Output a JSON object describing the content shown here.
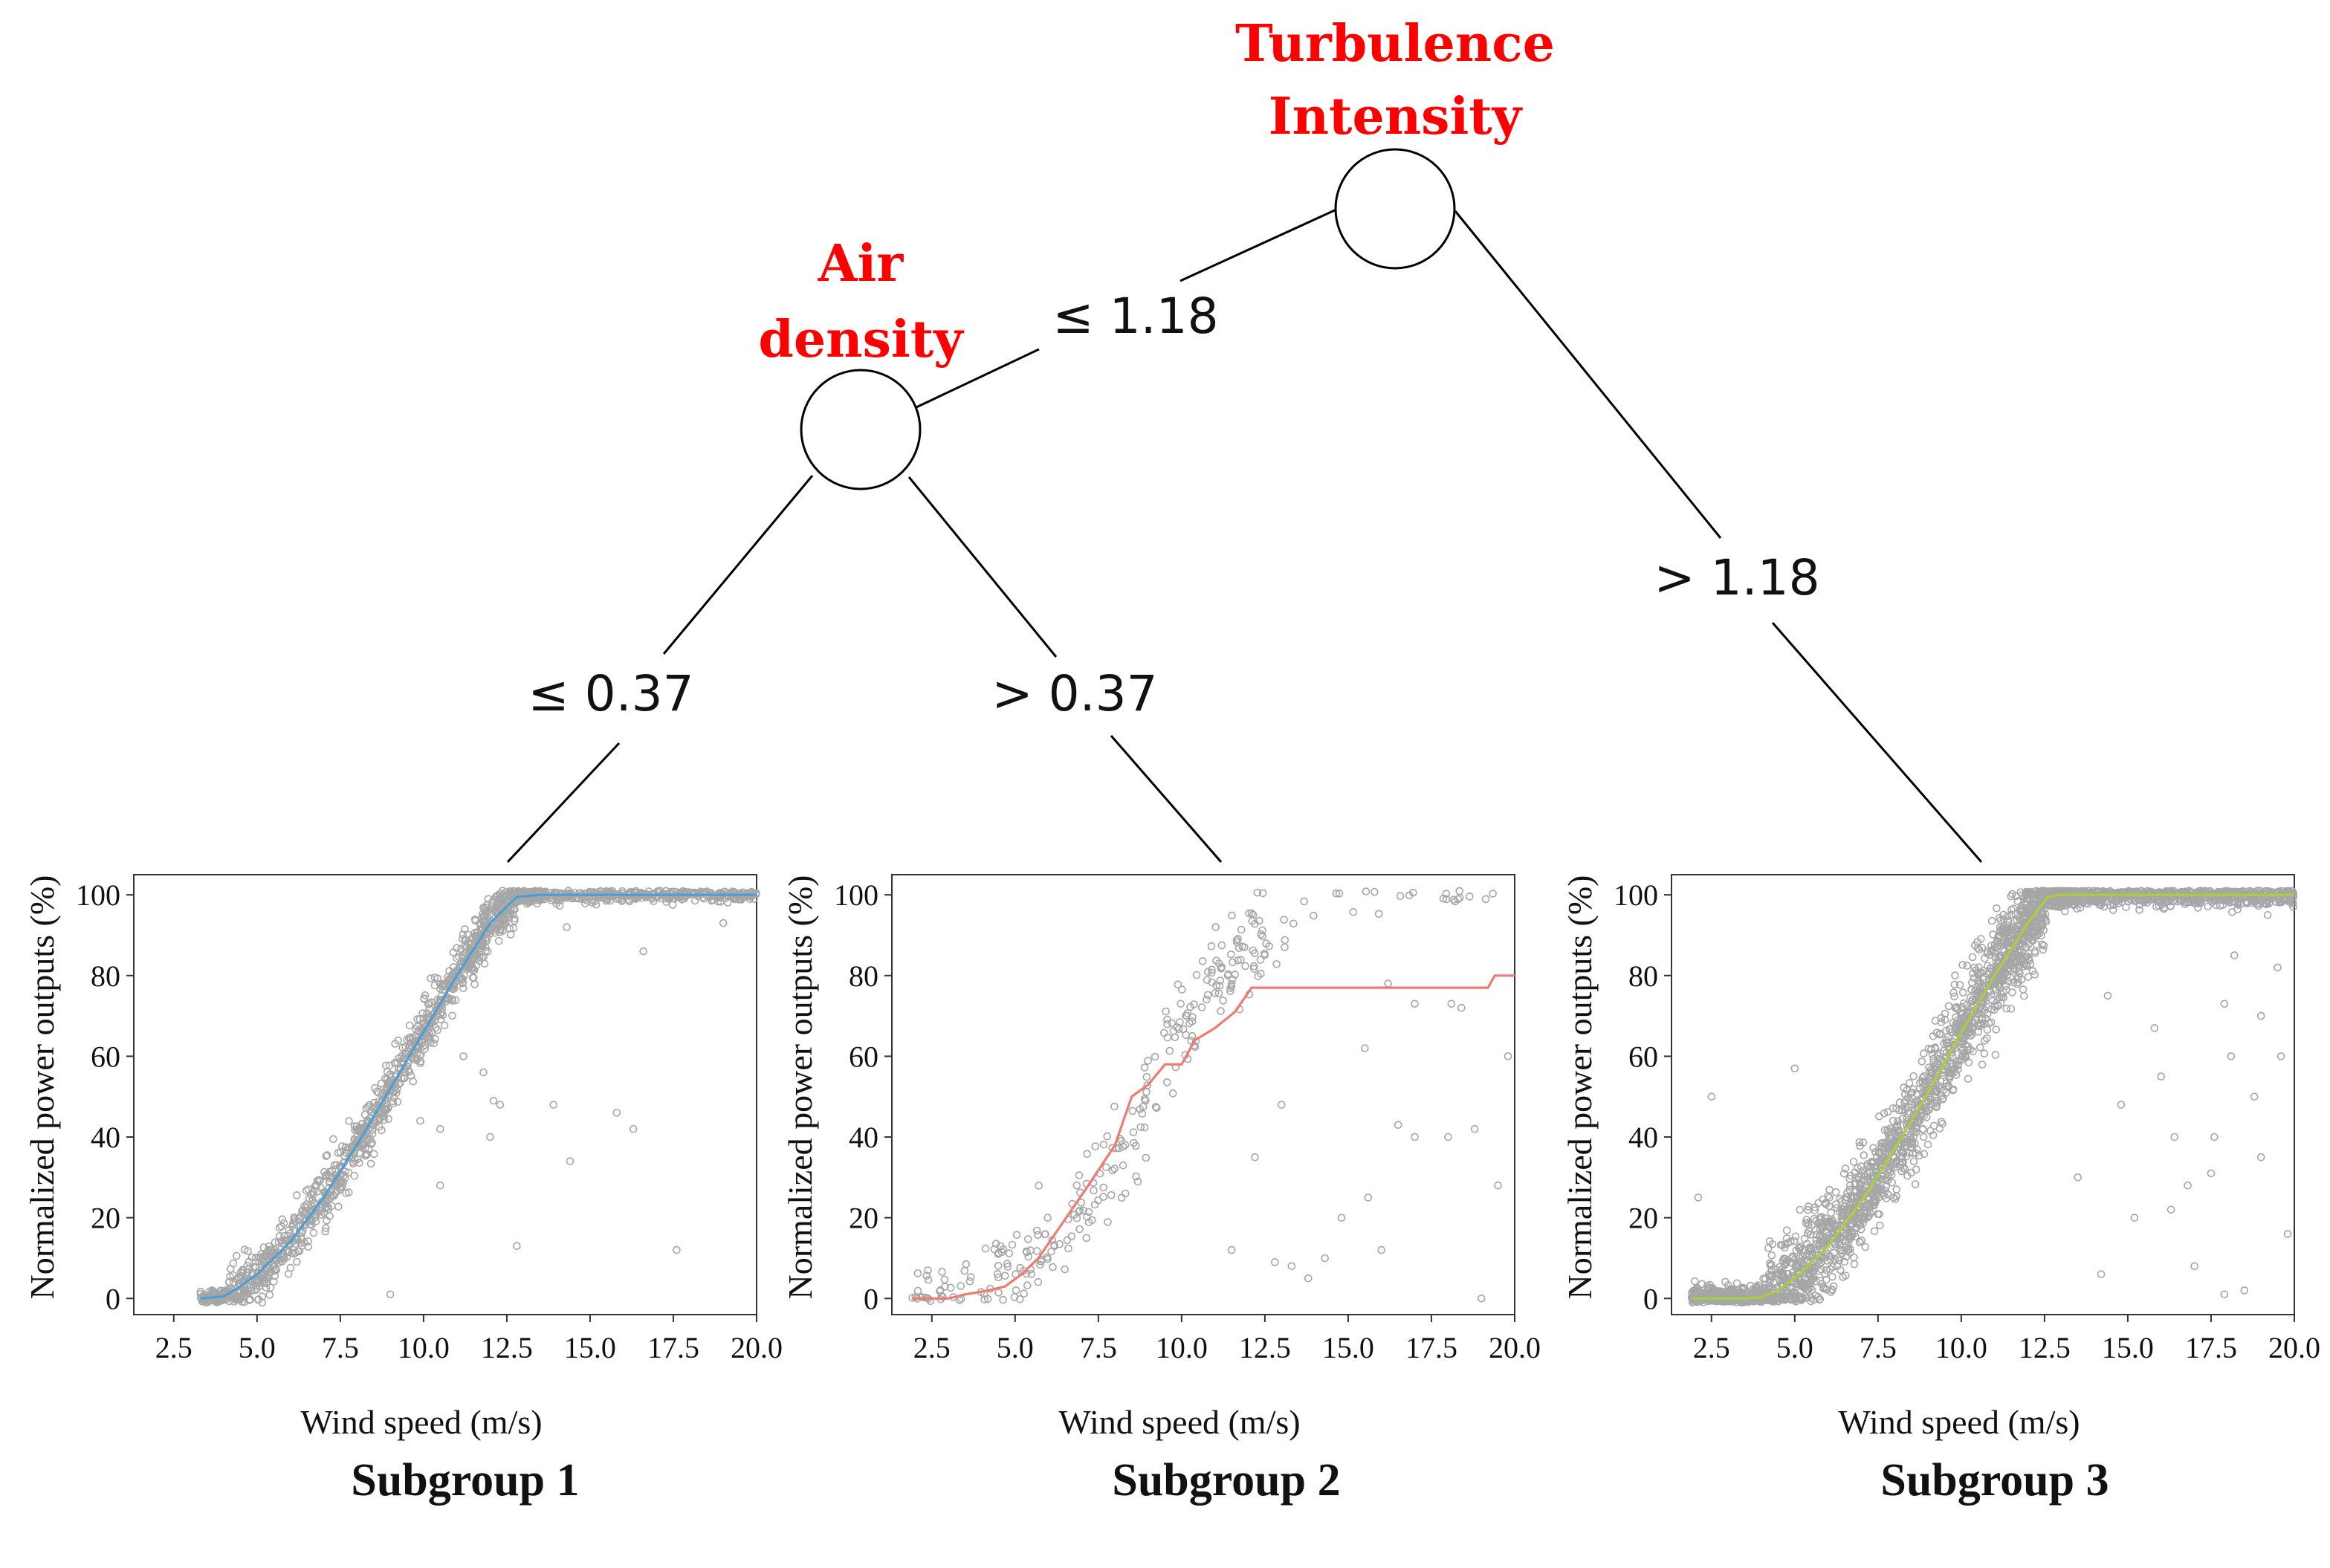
{
  "tree": {
    "root": {
      "label_lines": [
        "Turbulence",
        "Intensity"
      ]
    },
    "left": {
      "label_lines": [
        "Air",
        "density"
      ]
    },
    "edges": {
      "root_left": "≤ 1.18",
      "root_right": "> 1.18",
      "left_left": "≤ 0.37",
      "left_right": "> 0.37"
    }
  },
  "colors": {
    "node_label": "#ff0000",
    "points": "#a6a6a6",
    "subgroup1": "#4a9fd8",
    "subgroup2": "#f07a72",
    "subgroup3": "#a8cf3c"
  },
  "chart_data": [
    {
      "type": "scatter",
      "title": "Subgroup 1",
      "xlabel": "Wind speed (m/s)",
      "ylabel": "Normalized power outputs (%)",
      "xlim": [
        1.3,
        20.0
      ],
      "ylim": [
        -4,
        105
      ],
      "xticks": [
        "2.5",
        "5.0",
        "7.5",
        "10.0",
        "12.5",
        "15.0",
        "17.5",
        "20.0"
      ],
      "yticks": [
        "0",
        "20",
        "40",
        "60",
        "80",
        "100"
      ],
      "scatter_x_range": [
        3.3,
        20.0
      ],
      "fit_curve": {
        "color": "#4a9fd8",
        "x": [
          3.3,
          4.0,
          4.5,
          5.0,
          6.0,
          7.0,
          8.0,
          9.0,
          10.0,
          11.0,
          12.0,
          12.8,
          13.5,
          15.0,
          17.5,
          20.0
        ],
        "y": [
          0,
          0.5,
          3,
          6,
          14,
          25,
          38,
          52,
          66,
          80,
          93,
          99.5,
          100,
          100,
          100,
          100
        ]
      },
      "outliers": [
        [
          14.3,
          92
        ],
        [
          16.6,
          86
        ],
        [
          19.0,
          93
        ],
        [
          9.9,
          44
        ],
        [
          10.5,
          42
        ],
        [
          11.2,
          60
        ],
        [
          12.3,
          48
        ],
        [
          13.9,
          48
        ],
        [
          14.4,
          34
        ],
        [
          15.8,
          46
        ],
        [
          16.3,
          42
        ],
        [
          17.6,
          12
        ],
        [
          12.8,
          13
        ],
        [
          10.5,
          28
        ],
        [
          11.8,
          56
        ],
        [
          12.1,
          49
        ],
        [
          9.0,
          1
        ],
        [
          12.0,
          40
        ]
      ]
    },
    {
      "type": "scatter",
      "title": "Subgroup 2",
      "xlabel": "Wind speed (m/s)",
      "ylabel": "Normalized power outputs (%)",
      "xlim": [
        1.3,
        20.0
      ],
      "ylim": [
        -4,
        105
      ],
      "xticks": [
        "2.5",
        "5.0",
        "7.5",
        "10.0",
        "12.5",
        "15.0",
        "17.5",
        "20.0"
      ],
      "yticks": [
        "0",
        "20",
        "40",
        "60",
        "80",
        "100"
      ],
      "scatter_x_range": [
        1.9,
        20.0
      ],
      "fit_curve": {
        "color": "#f07a72",
        "x": [
          1.9,
          3.0,
          3.5,
          4.2,
          4.7,
          5.2,
          5.7,
          6.2,
          6.7,
          7.2,
          7.6,
          8.0,
          8.5,
          9.0,
          9.5,
          10.0,
          10.4,
          11.0,
          11.6,
          12.1,
          12.5,
          15.0,
          19.2,
          19.4,
          20.0
        ],
        "y": [
          0,
          0,
          1,
          2,
          3,
          6,
          10,
          16,
          22,
          28,
          33,
          38,
          50,
          53,
          58,
          58,
          64,
          67,
          71,
          77,
          77,
          77,
          77,
          80,
          80
        ]
      },
      "outliers": [
        [
          12.2,
          35
        ],
        [
          13.8,
          5
        ],
        [
          14.3,
          10
        ],
        [
          15.6,
          25
        ],
        [
          16.0,
          12
        ],
        [
          17.0,
          40
        ],
        [
          18.0,
          40
        ],
        [
          18.8,
          42
        ],
        [
          19.5,
          28
        ],
        [
          13.0,
          48
        ],
        [
          15.5,
          62
        ],
        [
          17.0,
          73
        ],
        [
          18.1,
          73
        ],
        [
          16.2,
          78
        ],
        [
          12.8,
          9
        ],
        [
          19.0,
          0
        ],
        [
          18.4,
          72
        ],
        [
          11.5,
          12
        ],
        [
          13.3,
          8
        ],
        [
          14.8,
          20
        ],
        [
          19.8,
          60
        ],
        [
          16.5,
          43
        ]
      ]
    },
    {
      "type": "scatter",
      "title": "Subgroup 3",
      "xlabel": "Wind speed (m/s)",
      "ylabel": "Normalized power outputs (%)",
      "xlim": [
        1.3,
        20.0
      ],
      "ylim": [
        -4,
        105
      ],
      "xticks": [
        "2.5",
        "5.0",
        "7.5",
        "10.0",
        "12.5",
        "15.0",
        "17.5",
        "20.0"
      ],
      "yticks": [
        "0",
        "20",
        "40",
        "60",
        "80",
        "100"
      ],
      "scatter_x_range": [
        1.9,
        20.0
      ],
      "fit_curve": {
        "color": "#a8cf3c",
        "x": [
          1.9,
          3.5,
          4.0,
          4.5,
          5.0,
          6.0,
          7.0,
          8.0,
          9.0,
          10.0,
          11.0,
          12.0,
          12.6,
          13.0,
          15.0,
          20.0
        ],
        "y": [
          0,
          0,
          0.3,
          2,
          5,
          13,
          24,
          37,
          51,
          66,
          80,
          93,
          99.5,
          100,
          100,
          100
        ]
      },
      "outliers": [
        [
          2.5,
          50
        ],
        [
          2.1,
          25
        ],
        [
          5.0,
          57
        ],
        [
          19.0,
          70
        ],
        [
          19.6,
          60
        ],
        [
          17.5,
          31
        ],
        [
          16.3,
          22
        ],
        [
          18.1,
          60
        ],
        [
          17.9,
          73
        ],
        [
          15.2,
          20
        ],
        [
          14.2,
          6
        ],
        [
          16.4,
          40
        ],
        [
          18.8,
          50
        ],
        [
          19.8,
          16
        ],
        [
          17.9,
          1
        ],
        [
          13.5,
          30
        ],
        [
          18.5,
          2
        ],
        [
          19.2,
          95
        ],
        [
          16.0,
          55
        ],
        [
          14.8,
          48
        ],
        [
          18.2,
          85
        ],
        [
          19.5,
          82
        ],
        [
          17.0,
          8
        ],
        [
          15.8,
          67
        ],
        [
          19.0,
          35
        ],
        [
          16.8,
          28
        ],
        [
          14.4,
          75
        ],
        [
          17.6,
          40
        ]
      ]
    }
  ]
}
